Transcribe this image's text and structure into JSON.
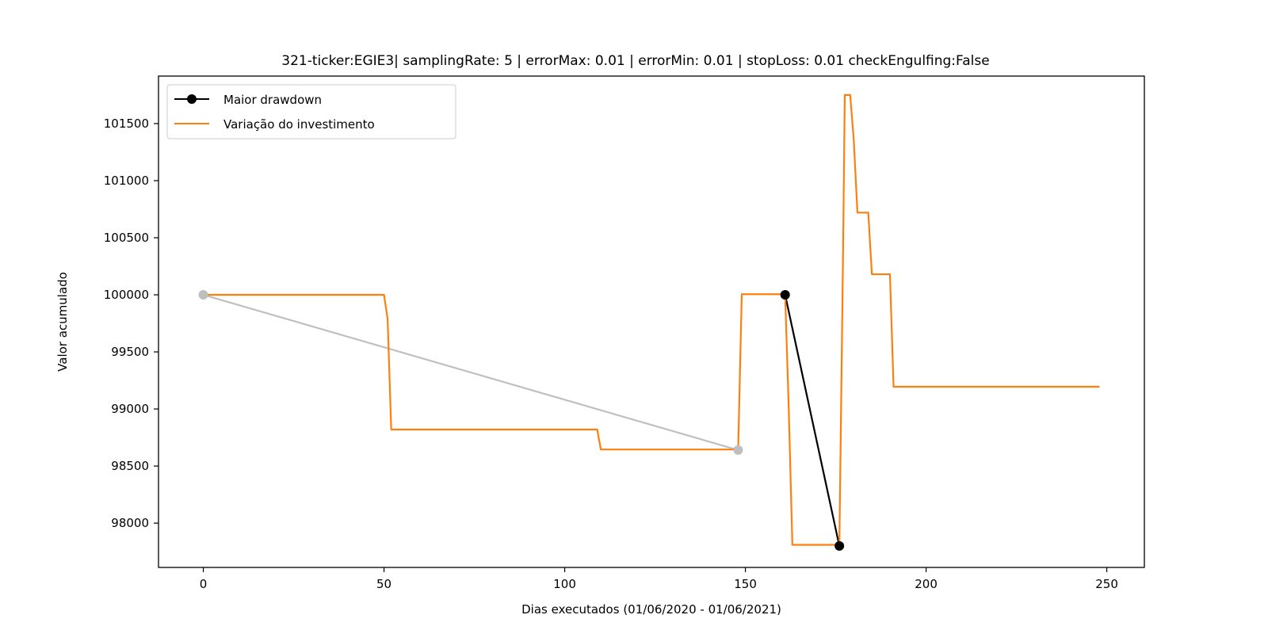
{
  "chart_data": {
    "type": "line",
    "title": "321-ticker:EGIE3| samplingRate: 5 | errorMax: 0.01 | errorMin: 0.01 | stopLoss: 0.01 checkEngulfing:False",
    "xlabel": "Dias executados (01/06/2020 - 01/06/2021)",
    "ylabel": "Valor acumulado",
    "xlim": [
      -12.4,
      260.4
    ],
    "ylim": [
      97612,
      101916
    ],
    "x_ticks": [
      0,
      50,
      100,
      150,
      200,
      250
    ],
    "y_ticks": [
      98000,
      98500,
      99000,
      99500,
      100000,
      100500,
      101000,
      101500
    ],
    "legend_position": "upper-left",
    "grid": false,
    "series": [
      {
        "name": "Maior drawdown",
        "color": "#000000",
        "marker": "circle",
        "points": [
          [
            161,
            100000
          ],
          [
            176,
            97800
          ]
        ]
      },
      {
        "name": "",
        "color": "#bfbfbf",
        "marker": "circle",
        "in_legend": false,
        "points": [
          [
            0,
            100000
          ],
          [
            148,
            98640
          ]
        ]
      },
      {
        "name": "Variação do investimento",
        "color": "#ff7f0e",
        "marker": "none",
        "points": [
          [
            0,
            100000
          ],
          [
            50,
            100000
          ],
          [
            51,
            99790
          ],
          [
            52,
            98820
          ],
          [
            109,
            98820
          ],
          [
            110,
            98645
          ],
          [
            148,
            98645
          ],
          [
            149,
            100005
          ],
          [
            161,
            100005
          ],
          [
            162,
            99000
          ],
          [
            163,
            97810
          ],
          [
            175,
            97810
          ],
          [
            176,
            97810
          ],
          [
            177,
            100300
          ],
          [
            177.5,
            101750
          ],
          [
            179,
            101750
          ],
          [
            180,
            101350
          ],
          [
            181,
            100720
          ],
          [
            184,
            100720
          ],
          [
            185,
            100180
          ],
          [
            190,
            100180
          ],
          [
            191,
            99195
          ],
          [
            248,
            99195
          ]
        ]
      }
    ]
  }
}
